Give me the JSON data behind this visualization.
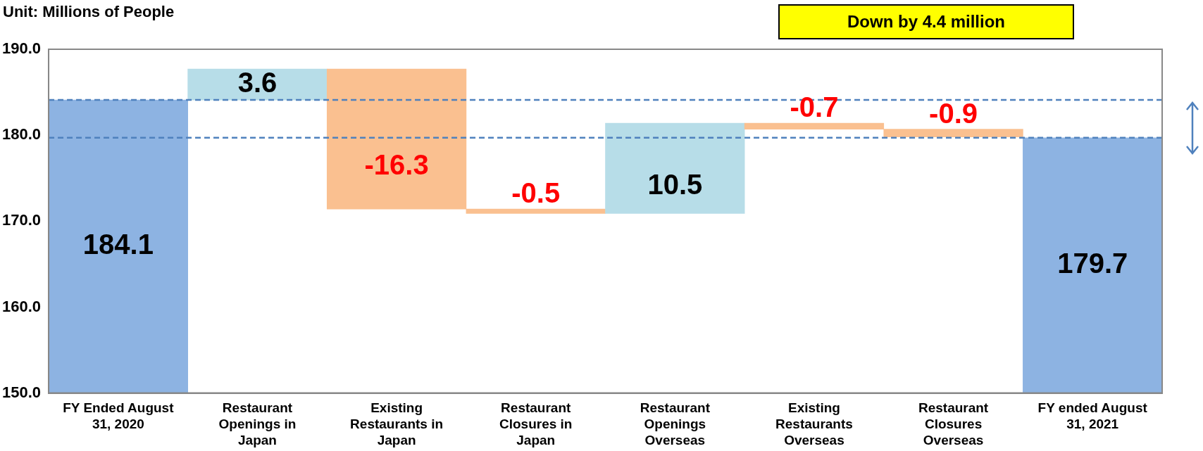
{
  "chart_data": {
    "type": "bar",
    "ylabel": "Unit: Millions of People",
    "annotations": [
      "Down by 4.4 million"
    ],
    "categories": [
      "FY Ended August 31, 2020",
      "Restaurant Openings in Japan",
      "Existing Restaurants in Japan",
      "Restaurant Closures in Japan",
      "Restaurant Openings Overseas",
      "Existing Restaurants Overseas",
      "Restaurant Closures Overseas",
      "FY ended August 31, 2021"
    ],
    "values": [
      184.1,
      3.6,
      -16.3,
      -0.5,
      10.5,
      -0.7,
      -0.9,
      179.7
    ],
    "base": [
      null,
      184.1,
      187.7,
      171.4,
      170.9,
      181.4,
      180.7,
      null
    ],
    "colors": [
      "#8db3e2",
      "#b7dde8",
      "#fac090",
      "#fac090",
      "#b7dde8",
      "#fac090",
      "#fac090",
      "#8db3e2"
    ],
    "data_labels": true,
    "ylim": [
      150,
      190
    ],
    "yticks": [
      {
        "value": 150,
        "label": "150.0"
      },
      {
        "value": 160,
        "label": "160.0"
      },
      {
        "value": 170,
        "label": "170.0"
      },
      {
        "value": 180,
        "label": "180.0"
      },
      {
        "value": 190,
        "label": "190.0"
      }
    ],
    "ref_lines": [
      {
        "axis": "y",
        "value": 184.1,
        "color": "#4f81bd",
        "line_style": "dashed"
      },
      {
        "axis": "y",
        "value": 179.7,
        "color": "#4f81bd",
        "line_style": "dashed"
      }
    ],
    "grid": false,
    "legend": false
  }
}
